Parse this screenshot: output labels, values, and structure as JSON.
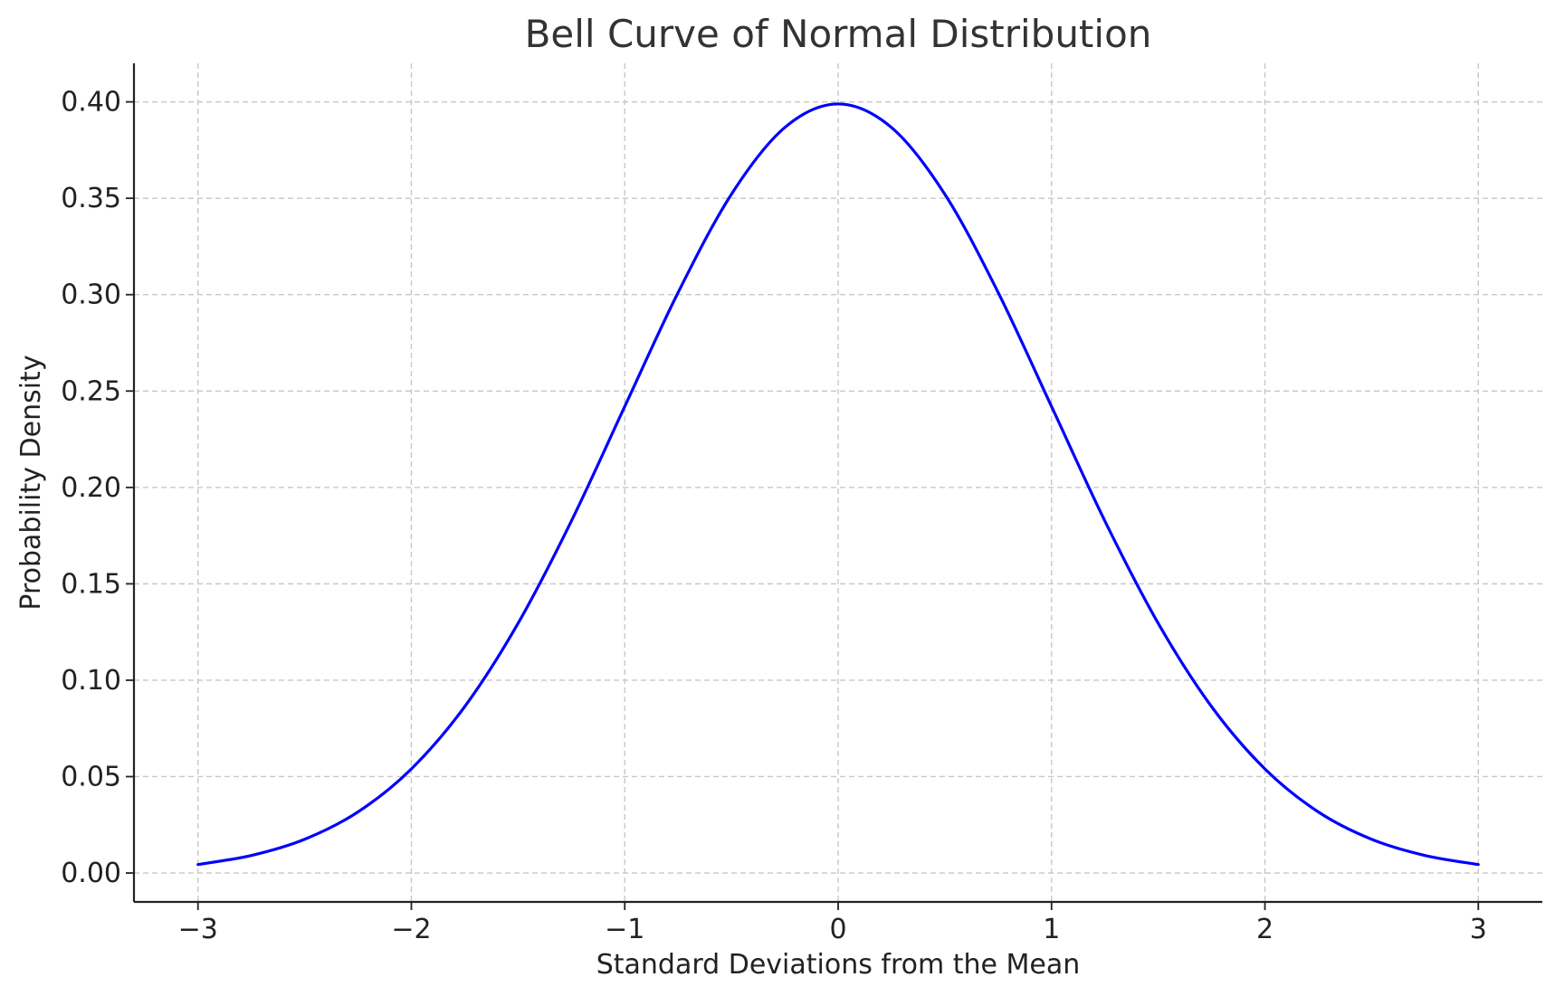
{
  "chart_data": {
    "type": "line",
    "title": "Bell Curve of Normal Distribution",
    "xlabel": "Standard Deviations from the Mean",
    "ylabel": "Probability Density",
    "xlim": [
      -3.3,
      3.3
    ],
    "ylim": [
      -0.015,
      0.42
    ],
    "x_ticks": [
      -3,
      -2,
      -1,
      0,
      1,
      2,
      3
    ],
    "x_tick_labels": [
      "−3",
      "−2",
      "−1",
      "0",
      "1",
      "2",
      "3"
    ],
    "y_ticks": [
      0.0,
      0.05,
      0.1,
      0.15,
      0.2,
      0.25,
      0.3,
      0.35,
      0.4
    ],
    "y_tick_labels": [
      "0.00",
      "0.05",
      "0.10",
      "0.15",
      "0.20",
      "0.25",
      "0.30",
      "0.35",
      "0.40"
    ],
    "grid": true,
    "series": [
      {
        "color": "#0000ff",
        "x": [
          -3.0,
          -2.75,
          -2.5,
          -2.25,
          -2.0,
          -1.75,
          -1.5,
          -1.25,
          -1.0,
          -0.75,
          -0.5,
          -0.25,
          0.0,
          0.25,
          0.5,
          0.75,
          1.0,
          1.25,
          1.5,
          1.75,
          2.0,
          2.25,
          2.5,
          2.75,
          3.0
        ],
        "y": [
          0.0044,
          0.0091,
          0.0175,
          0.0317,
          0.054,
          0.0863,
          0.1295,
          0.1826,
          0.242,
          0.3011,
          0.3521,
          0.3867,
          0.3989,
          0.3867,
          0.3521,
          0.3011,
          0.242,
          0.1826,
          0.1295,
          0.0863,
          0.054,
          0.0317,
          0.0175,
          0.0091,
          0.0044
        ]
      }
    ]
  }
}
